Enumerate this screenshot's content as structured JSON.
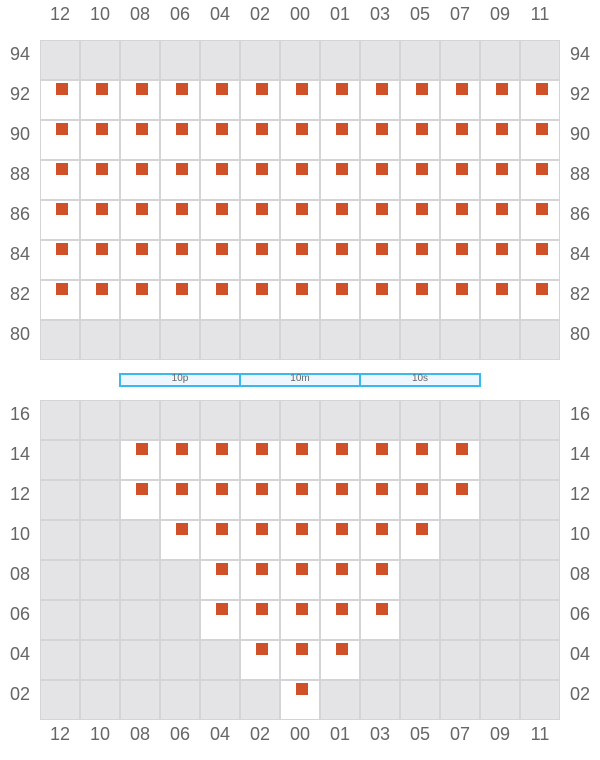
{
  "columns": [
    "12",
    "10",
    "08",
    "06",
    "04",
    "02",
    "00",
    "01",
    "03",
    "05",
    "07",
    "09",
    "11"
  ],
  "seat_color": "#d0502a",
  "upper_section": {
    "rows": [
      {
        "label": "94",
        "cols": []
      },
      {
        "label": "92",
        "cols": [
          "12",
          "10",
          "08",
          "06",
          "04",
          "02",
          "00",
          "01",
          "03",
          "05",
          "07",
          "09",
          "11"
        ]
      },
      {
        "label": "90",
        "cols": [
          "12",
          "10",
          "08",
          "06",
          "04",
          "02",
          "00",
          "01",
          "03",
          "05",
          "07",
          "09",
          "11"
        ]
      },
      {
        "label": "88",
        "cols": [
          "12",
          "10",
          "08",
          "06",
          "04",
          "02",
          "00",
          "01",
          "03",
          "05",
          "07",
          "09",
          "11"
        ]
      },
      {
        "label": "86",
        "cols": [
          "12",
          "10",
          "08",
          "06",
          "04",
          "02",
          "00",
          "01",
          "03",
          "05",
          "07",
          "09",
          "11"
        ]
      },
      {
        "label": "84",
        "cols": [
          "12",
          "10",
          "08",
          "06",
          "04",
          "02",
          "00",
          "01",
          "03",
          "05",
          "07",
          "09",
          "11"
        ]
      },
      {
        "label": "82",
        "cols": [
          "12",
          "10",
          "08",
          "06",
          "04",
          "02",
          "00",
          "01",
          "03",
          "05",
          "07",
          "09",
          "11"
        ]
      },
      {
        "label": "80",
        "cols": []
      }
    ]
  },
  "zones": [
    "10p",
    "10m",
    "10s"
  ],
  "lower_section": {
    "rows": [
      {
        "label": "16",
        "cols": []
      },
      {
        "label": "14",
        "cols": [
          "08",
          "06",
          "04",
          "02",
          "00",
          "01",
          "03",
          "05",
          "07"
        ]
      },
      {
        "label": "12",
        "cols": [
          "08",
          "06",
          "04",
          "02",
          "00",
          "01",
          "03",
          "05",
          "07"
        ]
      },
      {
        "label": "10",
        "cols": [
          "06",
          "04",
          "02",
          "00",
          "01",
          "03",
          "05"
        ]
      },
      {
        "label": "08",
        "cols": [
          "04",
          "02",
          "00",
          "01",
          "03"
        ]
      },
      {
        "label": "06",
        "cols": [
          "04",
          "02",
          "00",
          "01",
          "03"
        ]
      },
      {
        "label": "04",
        "cols": [
          "02",
          "00",
          "01"
        ]
      },
      {
        "label": "02",
        "cols": [
          "00"
        ]
      }
    ]
  }
}
